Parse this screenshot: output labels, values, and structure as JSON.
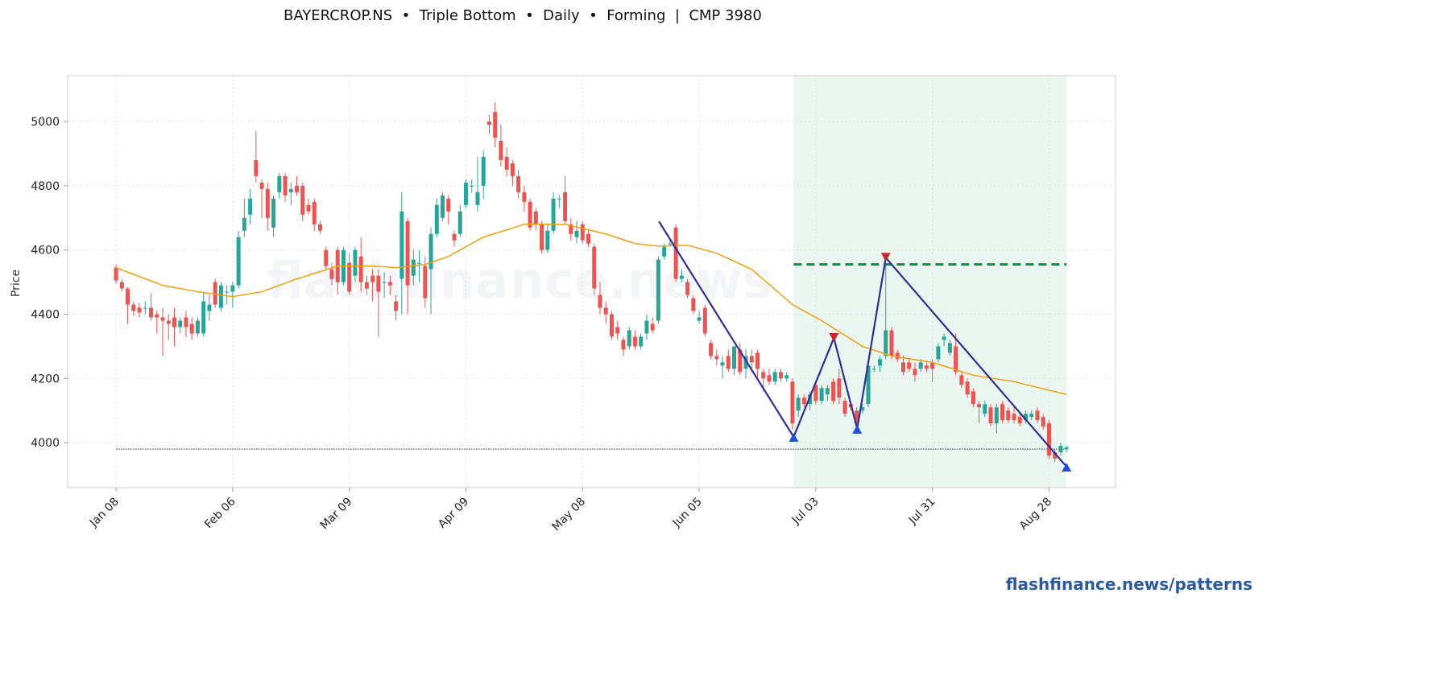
{
  "chart_data": {
    "type": "candlestick",
    "title": "BAYERCROP.NS  •  Triple Bottom  •  Daily  •  Forming  |  CMP 3980",
    "y_label": "Price",
    "watermark": "flashfinance.news",
    "footer": "flashfinance.news/patterns",
    "xlim": [
      -8.3,
      171.4
    ],
    "ylim": [
      3860,
      5143
    ],
    "yticks": [
      4000,
      4200,
      4400,
      4600,
      4800,
      5000
    ],
    "xticks": [
      {
        "value": 0,
        "label": "Jan 08"
      },
      {
        "value": 20,
        "label": "Feb 06"
      },
      {
        "value": 40,
        "label": "Mar 09"
      },
      {
        "value": 60,
        "label": "Apr 09"
      },
      {
        "value": 80,
        "label": "May 08"
      },
      {
        "value": 100,
        "label": "Jun 05"
      },
      {
        "value": 120,
        "label": "Jul 03"
      },
      {
        "value": 140,
        "label": "Jul 31"
      },
      {
        "value": 160,
        "label": "Aug 28"
      }
    ],
    "grid": true,
    "up_color": "#26a69a",
    "down_color": "#ef5350",
    "ohlc": [
      [
        4545,
        4555,
        4495,
        4505
      ],
      [
        4500,
        4510,
        4470,
        4480
      ],
      [
        4480,
        4485,
        4370,
        4430
      ],
      [
        4430,
        4440,
        4395,
        4410
      ],
      [
        4420,
        4435,
        4390,
        4405
      ],
      [
        4420,
        4440,
        4400,
        4420
      ],
      [
        4420,
        4465,
        4380,
        4390
      ],
      [
        4400,
        4410,
        4340,
        4390
      ],
      [
        4390,
        4420,
        4270,
        4380
      ],
      [
        4380,
        4400,
        4320,
        4370
      ],
      [
        4390,
        4420,
        4300,
        4360
      ],
      [
        4360,
        4390,
        4340,
        4380
      ],
      [
        4390,
        4410,
        4330,
        4360
      ],
      [
        4370,
        4390,
        4320,
        4340
      ],
      [
        4340,
        4390,
        4330,
        4380
      ],
      [
        4340,
        4470,
        4330,
        4440
      ],
      [
        4410,
        4460,
        4380,
        4430
      ],
      [
        4500,
        4510,
        4420,
        4430
      ],
      [
        4420,
        4500,
        4410,
        4490
      ],
      [
        4470,
        4490,
        4430,
        4470
      ],
      [
        4470,
        4500,
        4420,
        4490
      ],
      [
        4490,
        4660,
        4480,
        4640
      ],
      [
        4660,
        4760,
        4640,
        4700
      ],
      [
        4710,
        4790,
        4680,
        4760
      ],
      [
        4880,
        4970,
        4810,
        4830
      ],
      [
        4810,
        4820,
        4700,
        4790
      ],
      [
        4790,
        4810,
        4660,
        4700
      ],
      [
        4670,
        4770,
        4640,
        4760
      ],
      [
        4780,
        4840,
        4760,
        4830
      ],
      [
        4830,
        4840,
        4750,
        4770
      ],
      [
        4780,
        4810,
        4740,
        4790
      ],
      [
        4800,
        4830,
        4770,
        4780
      ],
      [
        4800,
        4810,
        4690,
        4710
      ],
      [
        4740,
        4760,
        4710,
        4720
      ],
      [
        4750,
        4760,
        4660,
        4680
      ],
      [
        4680,
        4690,
        4650,
        4660
      ],
      [
        4600,
        4610,
        4540,
        4550
      ],
      [
        4540,
        4560,
        4490,
        4510
      ],
      [
        4600,
        4610,
        4460,
        4500
      ],
      [
        4500,
        4610,
        4490,
        4600
      ],
      [
        4560,
        4590,
        4460,
        4470
      ],
      [
        4520,
        4610,
        4500,
        4600
      ],
      [
        4580,
        4640,
        4470,
        4500
      ],
      [
        4500,
        4520,
        4460,
        4480
      ],
      [
        4520,
        4540,
        4440,
        4500
      ],
      [
        4520,
        4540,
        4330,
        4470
      ],
      [
        4500,
        4530,
        4450,
        4500
      ],
      [
        4500,
        4520,
        4460,
        4490
      ],
      [
        4440,
        4460,
        4380,
        4410
      ],
      [
        4510,
        4780,
        4400,
        4720
      ],
      [
        4690,
        4700,
        4400,
        4490
      ],
      [
        4520,
        4600,
        4490,
        4570
      ],
      [
        4560,
        4600,
        4500,
        4560
      ],
      [
        4550,
        4580,
        4420,
        4450
      ],
      [
        4540,
        4670,
        4400,
        4650
      ],
      [
        4650,
        4760,
        4640,
        4740
      ],
      [
        4700,
        4780,
        4690,
        4770
      ],
      [
        4760,
        4770,
        4680,
        4720
      ],
      [
        4650,
        4660,
        4610,
        4630
      ],
      [
        4650,
        4740,
        4640,
        4720
      ],
      [
        4740,
        4820,
        4730,
        4810
      ],
      [
        4800,
        4820,
        4780,
        4800
      ],
      [
        4740,
        4890,
        4720,
        4780
      ],
      [
        4800,
        4910,
        4760,
        4890
      ],
      [
        5000,
        5020,
        4960,
        4990
      ],
      [
        5030,
        5060,
        4920,
        4950
      ],
      [
        4940,
        4990,
        4860,
        4880
      ],
      [
        4890,
        4920,
        4830,
        4850
      ],
      [
        4870,
        4880,
        4800,
        4830
      ],
      [
        4830,
        4850,
        4760,
        4780
      ],
      [
        4780,
        4800,
        4720,
        4750
      ],
      [
        4750,
        4760,
        4660,
        4670
      ],
      [
        4720,
        4730,
        4660,
        4680
      ],
      [
        4680,
        4690,
        4590,
        4600
      ],
      [
        4600,
        4680,
        4590,
        4660
      ],
      [
        4660,
        4780,
        4650,
        4760
      ],
      [
        4760,
        4770,
        4730,
        4760
      ],
      [
        4780,
        4830,
        4680,
        4690
      ],
      [
        4680,
        4700,
        4630,
        4650
      ],
      [
        4640,
        4690,
        4620,
        4660
      ],
      [
        4680,
        4690,
        4620,
        4630
      ],
      [
        4650,
        4660,
        4610,
        4620
      ],
      [
        4610,
        4620,
        4460,
        4480
      ],
      [
        4460,
        4500,
        4400,
        4420
      ],
      [
        4420,
        4440,
        4370,
        4400
      ],
      [
        4400,
        4410,
        4320,
        4330
      ],
      [
        4360,
        4380,
        4320,
        4340
      ],
      [
        4320,
        4330,
        4270,
        4290
      ],
      [
        4300,
        4360,
        4290,
        4350
      ],
      [
        4330,
        4350,
        4290,
        4300
      ],
      [
        4300,
        4340,
        4290,
        4330
      ],
      [
        4340,
        4400,
        4320,
        4380
      ],
      [
        4370,
        4390,
        4340,
        4350
      ],
      [
        4380,
        4580,
        4370,
        4570
      ],
      [
        4580,
        4620,
        4570,
        4610
      ],
      [
        4620,
        4630,
        4610,
        4620
      ],
      [
        4670,
        4680,
        4500,
        4510
      ],
      [
        4510,
        4540,
        4500,
        4520
      ],
      [
        4500,
        4510,
        4450,
        4460
      ],
      [
        4450,
        4460,
        4400,
        4410
      ],
      [
        4380,
        4410,
        4370,
        4390
      ],
      [
        4420,
        4430,
        4330,
        4340
      ],
      [
        4310,
        4320,
        4260,
        4270
      ],
      [
        4270,
        4290,
        4240,
        4260
      ],
      [
        4240,
        4270,
        4200,
        4250
      ],
      [
        4270,
        4290,
        4220,
        4230
      ],
      [
        4230,
        4300,
        4210,
        4300
      ],
      [
        4290,
        4310,
        4210,
        4220
      ],
      [
        4230,
        4290,
        4200,
        4270
      ],
      [
        4270,
        4290,
        4220,
        4250
      ],
      [
        4280,
        4290,
        4200,
        4230
      ],
      [
        4220,
        4230,
        4160,
        4200
      ],
      [
        4210,
        4230,
        4180,
        4190
      ],
      [
        4190,
        4230,
        4180,
        4220
      ],
      [
        4220,
        4230,
        4190,
        4200
      ],
      [
        4200,
        4220,
        4190,
        4210
      ],
      [
        4190,
        4200,
        4040,
        4060
      ],
      [
        4100,
        4150,
        4080,
        4140
      ],
      [
        4140,
        4150,
        4110,
        4120
      ],
      [
        4120,
        4160,
        4100,
        4150
      ],
      [
        4180,
        4190,
        4120,
        4130
      ],
      [
        4130,
        4180,
        4120,
        4170
      ],
      [
        4150,
        4180,
        4130,
        4170
      ],
      [
        4190,
        4200,
        4120,
        4130
      ],
      [
        4200,
        4230,
        4120,
        4140
      ],
      [
        4130,
        4140,
        4080,
        4090
      ],
      [
        4120,
        4130,
        4100,
        4110
      ],
      [
        4100,
        4110,
        4040,
        4060
      ],
      [
        4100,
        4120,
        4090,
        4110
      ],
      [
        4120,
        4250,
        4110,
        4240
      ],
      [
        4230,
        4240,
        4220,
        4230
      ],
      [
        4240,
        4270,
        4220,
        4260
      ],
      [
        4270,
        4560,
        4260,
        4350
      ],
      [
        4350,
        4360,
        4260,
        4270
      ],
      [
        4280,
        4290,
        4250,
        4260
      ],
      [
        4250,
        4270,
        4210,
        4220
      ],
      [
        4250,
        4260,
        4220,
        4230
      ],
      [
        4230,
        4250,
        4190,
        4210
      ],
      [
        4230,
        4260,
        4220,
        4250
      ],
      [
        4240,
        4250,
        4220,
        4230
      ],
      [
        4250,
        4260,
        4190,
        4230
      ],
      [
        4260,
        4310,
        4250,
        4300
      ],
      [
        4320,
        4340,
        4300,
        4330
      ],
      [
        4280,
        4320,
        4270,
        4310
      ],
      [
        4300,
        4340,
        4210,
        4220
      ],
      [
        4210,
        4220,
        4170,
        4180
      ],
      [
        4190,
        4200,
        4140,
        4150
      ],
      [
        4160,
        4170,
        4110,
        4120
      ],
      [
        4120,
        4130,
        4060,
        4110
      ],
      [
        4090,
        4130,
        4080,
        4120
      ],
      [
        4110,
        4120,
        4050,
        4060
      ],
      [
        4060,
        4120,
        4030,
        4110
      ],
      [
        4120,
        4130,
        4060,
        4070
      ],
      [
        4100,
        4110,
        4060,
        4070
      ],
      [
        4090,
        4110,
        4060,
        4070
      ],
      [
        4080,
        4090,
        4050,
        4060
      ],
      [
        4070,
        4100,
        4060,
        4090
      ],
      [
        4080,
        4100,
        4070,
        4090
      ],
      [
        4100,
        4110,
        4060,
        4070
      ],
      [
        4080,
        4090,
        4040,
        4050
      ],
      [
        4060,
        4070,
        3950,
        3960
      ],
      [
        3970,
        3980,
        3940,
        3950
      ],
      [
        3970,
        4000,
        3960,
        3990
      ],
      [
        3980,
        3990,
        3970,
        3985
      ]
    ],
    "moving_average": {
      "color": "#f59e0b",
      "x": [
        0,
        8,
        14,
        20,
        25,
        31,
        38,
        44,
        48,
        53,
        57,
        63,
        70,
        77,
        84,
        89,
        93,
        98,
        103,
        109,
        116,
        121,
        128,
        133,
        140,
        147,
        154,
        163
      ],
      "values": [
        4545,
        4490,
        4470,
        4455,
        4470,
        4510,
        4550,
        4550,
        4545,
        4555,
        4580,
        4640,
        4680,
        4680,
        4650,
        4620,
        4612,
        4615,
        4590,
        4540,
        4430,
        4380,
        4300,
        4270,
        4250,
        4210,
        4190,
        4150
      ]
    },
    "pattern": {
      "color": "#2e2e9e",
      "trough_color": "#1f4fd8",
      "peak_color": "#c62828",
      "x": [
        93.1,
        116.2,
        123.1,
        127.1,
        132.0,
        163
      ],
      "values": [
        4689,
        4018,
        4326,
        4043,
        4576,
        3925
      ]
    },
    "resistance": {
      "color": "#0a8f45",
      "value": 4555,
      "x": [
        116.2,
        163
      ]
    },
    "zone": {
      "color": "#e8f5ee",
      "x": [
        116.2,
        163
      ]
    },
    "cmp_line": {
      "color": "#555555",
      "value": 3980,
      "x": [
        0,
        163
      ]
    }
  }
}
